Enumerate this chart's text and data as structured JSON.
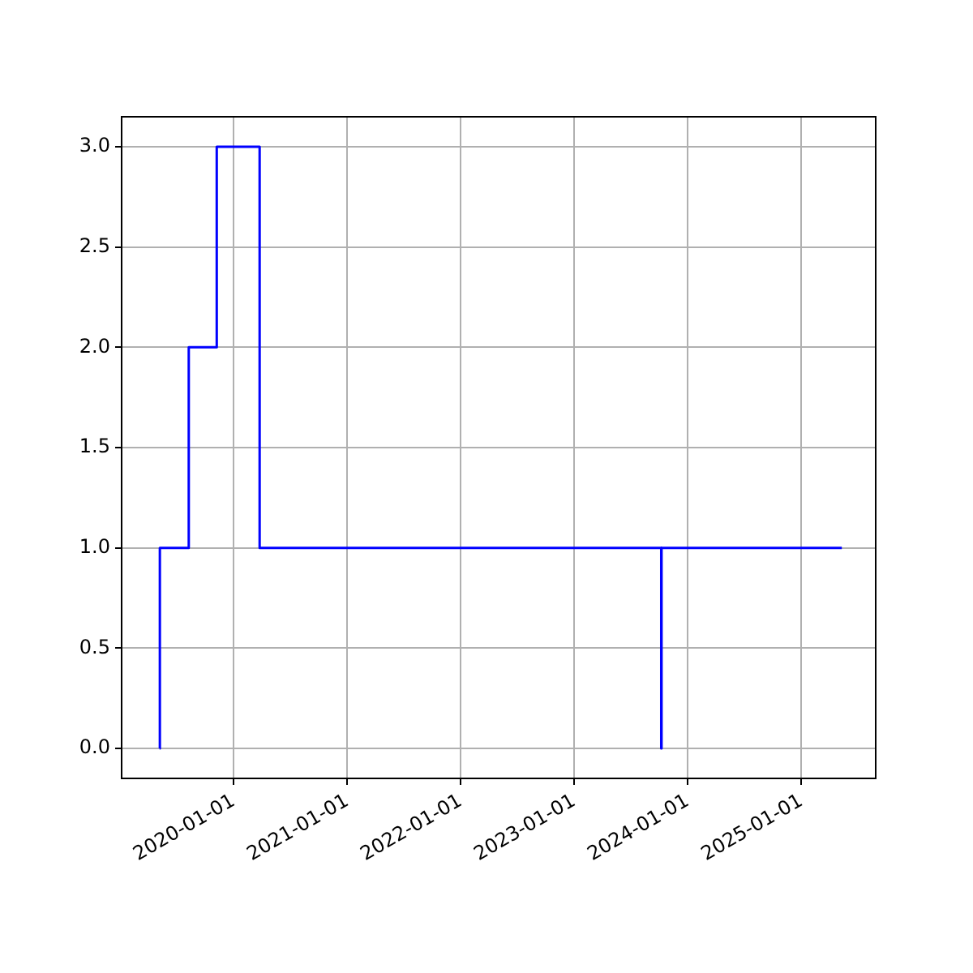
{
  "chart_data": {
    "type": "step",
    "x": [
      "2019-05-08",
      "2019-05-09",
      "2019-08-10",
      "2019-11-08",
      "2020-03-25",
      "2023-10-08",
      "2023-10-09",
      "2025-05-11"
    ],
    "series": [
      {
        "color": "#0000ff",
        "values": [
          0,
          1,
          2,
          3,
          1,
          0,
          1,
          1
        ]
      }
    ],
    "xlim": [
      "2019-01-06",
      "2025-08-28"
    ],
    "xticks": [
      "2020-01-01",
      "2021-01-01",
      "2022-01-01",
      "2023-01-01",
      "2024-01-01",
      "2025-01-01"
    ],
    "ylim": [
      -0.15,
      3.15
    ],
    "yticks": [
      {
        "value": 0,
        "label": "0.0"
      },
      {
        "value": 0.5,
        "label": "0.5"
      },
      {
        "value": 1,
        "label": "1.0"
      },
      {
        "value": 1.5,
        "label": "1.5"
      },
      {
        "value": 2,
        "label": "2.0"
      },
      {
        "value": 2.5,
        "label": "2.5"
      },
      {
        "value": 3,
        "label": "3.0"
      }
    ],
    "grid": true,
    "legend": false
  }
}
